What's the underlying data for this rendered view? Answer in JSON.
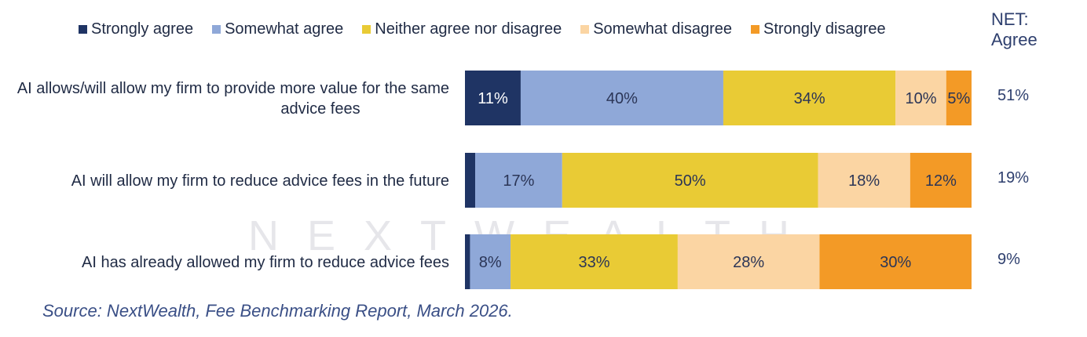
{
  "chart_data": {
    "type": "bar",
    "orientation": "horizontal",
    "stacked": true,
    "normalized": true,
    "categories": [
      "AI allows/will allow my firm to provide more value for the same advice fees",
      "AI will allow my firm to reduce advice fees in the future",
      "AI has already allowed my firm to reduce advice fees"
    ],
    "category_lines": [
      [
        "AI allows/will allow my firm to provide more value for the same",
        "advice fees"
      ],
      [
        "AI will allow my firm to reduce advice fees in the future"
      ],
      [
        "AI has already allowed my firm to reduce advice fees"
      ]
    ],
    "series": [
      {
        "name": "Strongly agree",
        "color": "#1f3464",
        "values": [
          11,
          2,
          1
        ],
        "labels": [
          "11%",
          "",
          ""
        ]
      },
      {
        "name": "Somewhat agree",
        "color": "#8fa8d8",
        "values": [
          40,
          17,
          8
        ],
        "labels": [
          "40%",
          "17%",
          "8%"
        ]
      },
      {
        "name": "Neither agree nor disagree",
        "color": "#e9cb35",
        "values": [
          34,
          50,
          33
        ],
        "labels": [
          "34%",
          "50%",
          "33%"
        ]
      },
      {
        "name": "Somewhat disagree",
        "color": "#fbd5a3",
        "values": [
          10,
          18,
          28
        ],
        "labels": [
          "10%",
          "18%",
          "28%"
        ]
      },
      {
        "name": "Strongly disagree",
        "color": "#f39a26",
        "values": [
          5,
          12,
          30
        ],
        "labels": [
          "5%",
          "12%",
          "30%"
        ]
      }
    ],
    "net_header": [
      "NET:",
      "Agree"
    ],
    "net_agree": [
      "51%",
      "19%",
      "9%"
    ],
    "legend_position": "top",
    "grid": false
  },
  "source": "Source: NextWealth, Fee Benchmarking Report, March 2026.",
  "watermark": "NEXTWEALTH"
}
